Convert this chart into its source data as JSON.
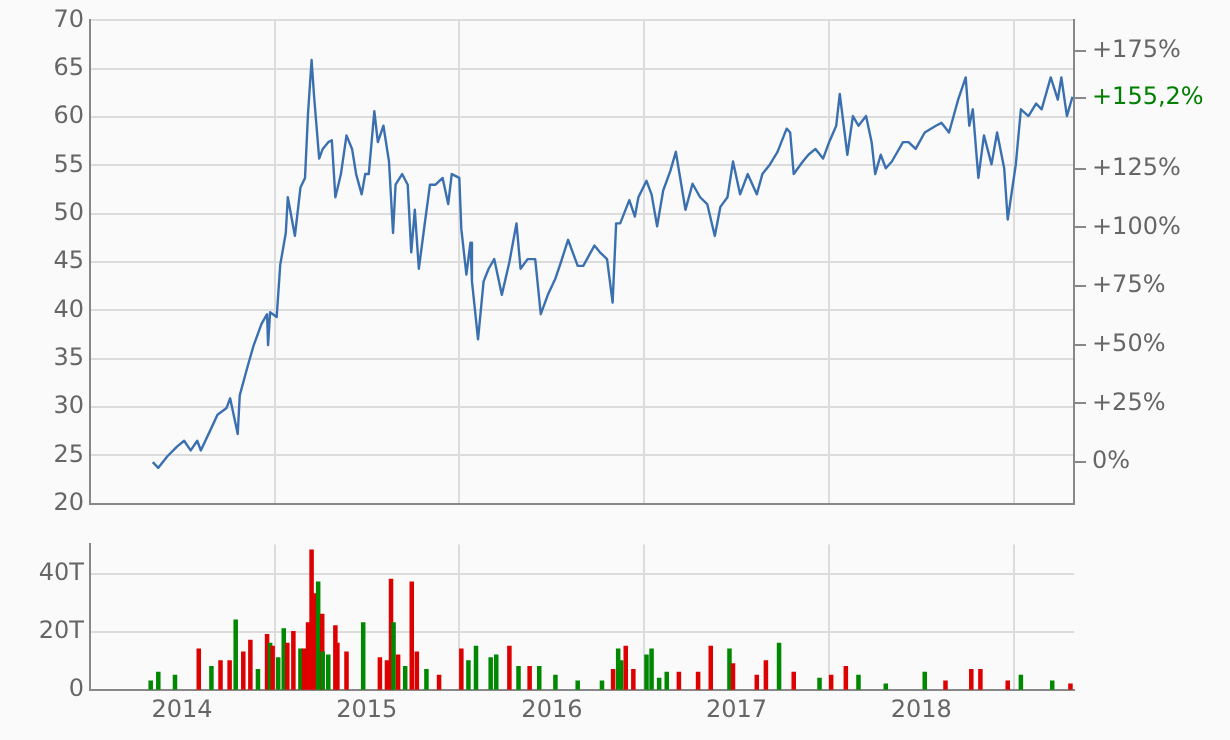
{
  "chart_data": [
    {
      "type": "line",
      "x": [
        "2014-05-05",
        "2014-05-16",
        "2014-06-03",
        "2014-06-22",
        "2014-07-06",
        "2014-07-19",
        "2014-08-01",
        "2014-08-08",
        "2014-08-26",
        "2014-09-10",
        "2014-09-28",
        "2014-10-05",
        "2014-10-20",
        "2014-10-24",
        "2014-11-07",
        "2014-11-20",
        "2014-12-06",
        "2014-12-17",
        "2014-12-19",
        "2014-12-23",
        "2015-01-05",
        "2015-01-12",
        "2015-01-23",
        "2015-01-27",
        "2015-02-10",
        "2015-02-21",
        "2015-03-02",
        "2015-03-08",
        "2015-03-15",
        "2015-03-20",
        "2015-03-30",
        "2015-04-06",
        "2015-04-17",
        "2015-04-24",
        "2015-05-01",
        "2015-05-12",
        "2015-05-23",
        "2015-06-03",
        "2015-06-11",
        "2015-06-22",
        "2015-06-29",
        "2015-07-06",
        "2015-07-17",
        "2015-07-24",
        "2015-08-04",
        "2015-08-15",
        "2015-08-23",
        "2015-08-28",
        "2015-09-10",
        "2015-09-21",
        "2015-09-28",
        "2015-10-05",
        "2015-10-13",
        "2015-10-24",
        "2015-11-04",
        "2015-11-15",
        "2015-11-29",
        "2015-12-10",
        "2015-12-17",
        "2016-01-01",
        "2016-01-05",
        "2016-01-15",
        "2016-01-23",
        "2016-01-26",
        "2016-02-07",
        "2016-02-18",
        "2016-02-28",
        "2016-03-10",
        "2016-03-25",
        "2016-04-09",
        "2016-04-23",
        "2016-05-01",
        "2016-05-15",
        "2016-05-30",
        "2016-06-10",
        "2016-06-24",
        "2016-07-09",
        "2016-07-20",
        "2016-08-03",
        "2016-08-22",
        "2016-09-02",
        "2016-09-24",
        "2016-10-05",
        "2016-10-19",
        "2016-10-30",
        "2016-11-06",
        "2016-11-14",
        "2016-12-02",
        "2016-12-13",
        "2016-12-20",
        "2017-01-05",
        "2017-01-15",
        "2017-01-26",
        "2017-02-07",
        "2017-02-21",
        "2017-03-04",
        "2017-03-23",
        "2017-04-06",
        "2017-04-21",
        "2017-05-05",
        "2017-05-20",
        "2017-05-31",
        "2017-06-14",
        "2017-06-25",
        "2017-07-09",
        "2017-07-24",
        "2017-08-11",
        "2017-08-22",
        "2017-09-06",
        "2017-09-21",
        "2017-10-09",
        "2017-10-16",
        "2017-10-23",
        "2017-11-10",
        "2017-11-21",
        "2017-12-05",
        "2017-12-20",
        "2018-01-01",
        "2018-01-15",
        "2018-01-22",
        "2018-02-06",
        "2018-02-17",
        "2018-02-28",
        "2018-03-15",
        "2018-03-26",
        "2018-04-02",
        "2018-04-13",
        "2018-04-23",
        "2018-05-05",
        "2018-05-27",
        "2018-06-07",
        "2018-06-21",
        "2018-07-09",
        "2018-07-31",
        "2018-08-11",
        "2018-08-26",
        "2018-09-13",
        "2018-09-28",
        "2018-10-05",
        "2018-10-12",
        "2018-10-23",
        "2018-11-03",
        "2018-11-18",
        "2018-11-29",
        "2018-12-13",
        "2018-12-20",
        "2019-01-05",
        "2019-01-15",
        "2019-01-30",
        "2019-02-14",
        "2019-02-25",
        "2019-03-15",
        "2019-03-29",
        "2019-04-05",
        "2019-04-16",
        "2019-04-27"
      ],
      "series": [
        {
          "color": "#3a70b0",
          "values": [
            24.3,
            23.7,
            24.9,
            25.9,
            26.5,
            25.5,
            26.5,
            25.5,
            27.5,
            29.2,
            29.9,
            30.9,
            27.2,
            31.2,
            33.9,
            36.3,
            38.6,
            39.6,
            36.4,
            39.8,
            39.3,
            44.7,
            48.0,
            51.7,
            47.7,
            52.7,
            53.7,
            60.4,
            65.9,
            62.1,
            55.7,
            56.7,
            57.4,
            57.6,
            51.7,
            54.1,
            58.1,
            56.7,
            54.1,
            52.0,
            54.1,
            54.1,
            60.6,
            57.4,
            59.1,
            55.4,
            48.0,
            53.0,
            54.1,
            53.0,
            46.0,
            50.4,
            44.3,
            48.7,
            53.0,
            53.0,
            53.7,
            51.0,
            54.1,
            53.7,
            48.4,
            43.7,
            47.0,
            43.0,
            37.0,
            43.0,
            44.3,
            45.3,
            41.6,
            45.0,
            49.0,
            44.3,
            45.3,
            45.3,
            39.6,
            41.6,
            43.3,
            45.0,
            47.3,
            44.6,
            44.6,
            46.7,
            46.0,
            45.3,
            40.8,
            49.0,
            49.0,
            51.4,
            49.7,
            51.7,
            53.4,
            52.0,
            48.7,
            52.4,
            54.4,
            56.4,
            50.4,
            53.1,
            51.7,
            51.0,
            47.7,
            50.7,
            51.7,
            55.4,
            52.0,
            54.1,
            52.0,
            54.1,
            55.1,
            56.4,
            58.8,
            58.4,
            54.1,
            55.4,
            56.1,
            56.7,
            55.7,
            57.4,
            59.1,
            62.4,
            56.1,
            60.1,
            59.1,
            60.1,
            57.4,
            54.1,
            56.1,
            54.7,
            55.4,
            57.4,
            57.4,
            56.7,
            58.4,
            59.1,
            59.4,
            58.4,
            61.8,
            64.1,
            59.1,
            60.8,
            53.7,
            58.1,
            55.1,
            58.4,
            54.7,
            49.4,
            55.1,
            60.8,
            60.1,
            61.4,
            60.8,
            64.1,
            61.8,
            64.1,
            60.1,
            62.1
          ]
        }
      ],
      "xlim": [
        "2014-01-01",
        "2019-04-30"
      ],
      "xticks": [
        {
          "value": "2015-01-01",
          "label": null
        },
        {
          "value": "2016-01-01",
          "label": null
        },
        {
          "value": "2017-01-01",
          "label": null
        },
        {
          "value": "2018-01-01",
          "label": null
        },
        {
          "value": "2019-01-01",
          "label": null
        }
      ],
      "ylim": [
        20,
        70
      ],
      "yticks": [
        20,
        25,
        30,
        35,
        40,
        45,
        50,
        55,
        60,
        65,
        70
      ],
      "y2lim": [
        -17.7,
        188.1
      ],
      "y2ticks": [
        {
          "value": 0,
          "label": "0%"
        },
        {
          "value": 25,
          "label": "+25%"
        },
        {
          "value": 50,
          "label": "+50%"
        },
        {
          "value": 75,
          "label": "+75%"
        },
        {
          "value": 100,
          "label": "+100%"
        },
        {
          "value": 125,
          "label": "+125%"
        },
        {
          "value": 175,
          "label": "+175%"
        },
        {
          "value": 155.2,
          "label": "+155,2%"
        }
      ],
      "grid": true,
      "tick_labels": "y"
    },
    {
      "type": "bar",
      "x": [
        "2014-05-01",
        "2014-05-16",
        "2014-06-18",
        "2014-08-04",
        "2014-08-29",
        "2014-09-16",
        "2014-10-04",
        "2014-10-16",
        "2014-10-31",
        "2014-11-14",
        "2014-11-29",
        "2014-12-17",
        "2014-12-23",
        "2014-12-28",
        "2015-01-08",
        "2015-01-19",
        "2015-01-26",
        "2015-02-07",
        "2015-02-21",
        "2015-02-28",
        "2015-03-08",
        "2015-03-15",
        "2015-03-20",
        "2015-03-28",
        "2015-04-05",
        "2015-04-06",
        "2015-04-17",
        "2015-05-01",
        "2015-05-05",
        "2015-05-23",
        "2015-06-25",
        "2015-07-28",
        "2015-08-11",
        "2015-08-19",
        "2015-08-24",
        "2015-09-02",
        "2015-09-16",
        "2015-09-29",
        "2015-10-09",
        "2015-10-28",
        "2015-11-22",
        "2016-01-05",
        "2016-01-19",
        "2016-02-03",
        "2016-03-03",
        "2016-03-14",
        "2016-04-09",
        "2016-04-27",
        "2016-05-19",
        "2016-06-07",
        "2016-07-09",
        "2016-08-22",
        "2016-10-09",
        "2016-10-31",
        "2016-11-10",
        "2016-11-16",
        "2016-11-25",
        "2016-12-10",
        "2017-01-05",
        "2017-01-15",
        "2017-01-30",
        "2017-02-14",
        "2017-03-10",
        "2017-04-17",
        "2017-05-12",
        "2017-06-18",
        "2017-06-25",
        "2017-08-11",
        "2017-08-29",
        "2017-09-24",
        "2017-10-23",
        "2017-12-13",
        "2018-01-05",
        "2018-02-03",
        "2018-02-28",
        "2018-04-23",
        "2018-07-09",
        "2018-08-19",
        "2018-10-09",
        "2018-10-27",
        "2018-12-20",
        "2019-01-15",
        "2019-03-18",
        "2019-04-23"
      ],
      "values": [
        3,
        6,
        5,
        14,
        8,
        10,
        10,
        24,
        13,
        17,
        7,
        19,
        16,
        15,
        11,
        21,
        16,
        20,
        14,
        14,
        23,
        48,
        33,
        37,
        26,
        13,
        12,
        22,
        16,
        13,
        23,
        11,
        10,
        38,
        23,
        12,
        8,
        37,
        13,
        7,
        5,
        14,
        10,
        15,
        11,
        12,
        15,
        8,
        8,
        8,
        5,
        3,
        3,
        7,
        14,
        10,
        15,
        7,
        12,
        14,
        4,
        6,
        6,
        6,
        15,
        14,
        9,
        5,
        10,
        16,
        6,
        4,
        5,
        8,
        5,
        2,
        6,
        3,
        7,
        7,
        3,
        5,
        3,
        2
      ],
      "colors": [
        "#008800",
        "#008800",
        "#008800",
        "#dd0000",
        "#008800",
        "#dd0000",
        "#dd0000",
        "#008800",
        "#dd0000",
        "#dd0000",
        "#008800",
        "#dd0000",
        "#008800",
        "#dd0000",
        "#008800",
        "#008800",
        "#dd0000",
        "#dd0000",
        "#008800",
        "#dd0000",
        "#dd0000",
        "#dd0000",
        "#dd0000",
        "#008800",
        "#dd0000",
        "#008800",
        "#008800",
        "#dd0000",
        "#dd0000",
        "#dd0000",
        "#008800",
        "#dd0000",
        "#dd0000",
        "#dd0000",
        "#008800",
        "#dd0000",
        "#008800",
        "#dd0000",
        "#dd0000",
        "#008800",
        "#dd0000",
        "#dd0000",
        "#008800",
        "#008800",
        "#008800",
        "#008800",
        "#dd0000",
        "#008800",
        "#dd0000",
        "#008800",
        "#008800",
        "#008800",
        "#008800",
        "#dd0000",
        "#008800",
        "#008800",
        "#dd0000",
        "#dd0000",
        "#008800",
        "#008800",
        "#008800",
        "#008800",
        "#dd0000",
        "#dd0000",
        "#dd0000",
        "#008800",
        "#dd0000",
        "#dd0000",
        "#dd0000",
        "#008800",
        "#dd0000",
        "#008800",
        "#dd0000",
        "#dd0000",
        "#008800",
        "#008800",
        "#008800",
        "#dd0000",
        "#dd0000",
        "#dd0000",
        "#dd0000",
        "#008800",
        "#008800",
        "#dd0000"
      ],
      "xlim": [
        "2014-01-01",
        "2019-04-30"
      ],
      "xticks": [
        {
          "value": "2014-07-02",
          "label": "2014"
        },
        {
          "value": "2015-01-01",
          "label": null
        },
        {
          "value": "2015-07-02",
          "label": "2015"
        },
        {
          "value": "2016-01-01",
          "label": null
        },
        {
          "value": "2016-07-02",
          "label": "2016"
        },
        {
          "value": "2017-01-01",
          "label": null
        },
        {
          "value": "2017-07-02",
          "label": "2017"
        },
        {
          "value": "2018-01-01",
          "label": null
        },
        {
          "value": "2018-07-02",
          "label": "2018"
        },
        {
          "value": "2019-01-01",
          "label": null
        }
      ],
      "ylim": [
        0,
        50
      ],
      "yticks": [
        {
          "value": 0,
          "label": "0"
        },
        {
          "value": 20,
          "label": "20T"
        },
        {
          "value": 40,
          "label": "40T"
        }
      ],
      "grid": true
    }
  ]
}
